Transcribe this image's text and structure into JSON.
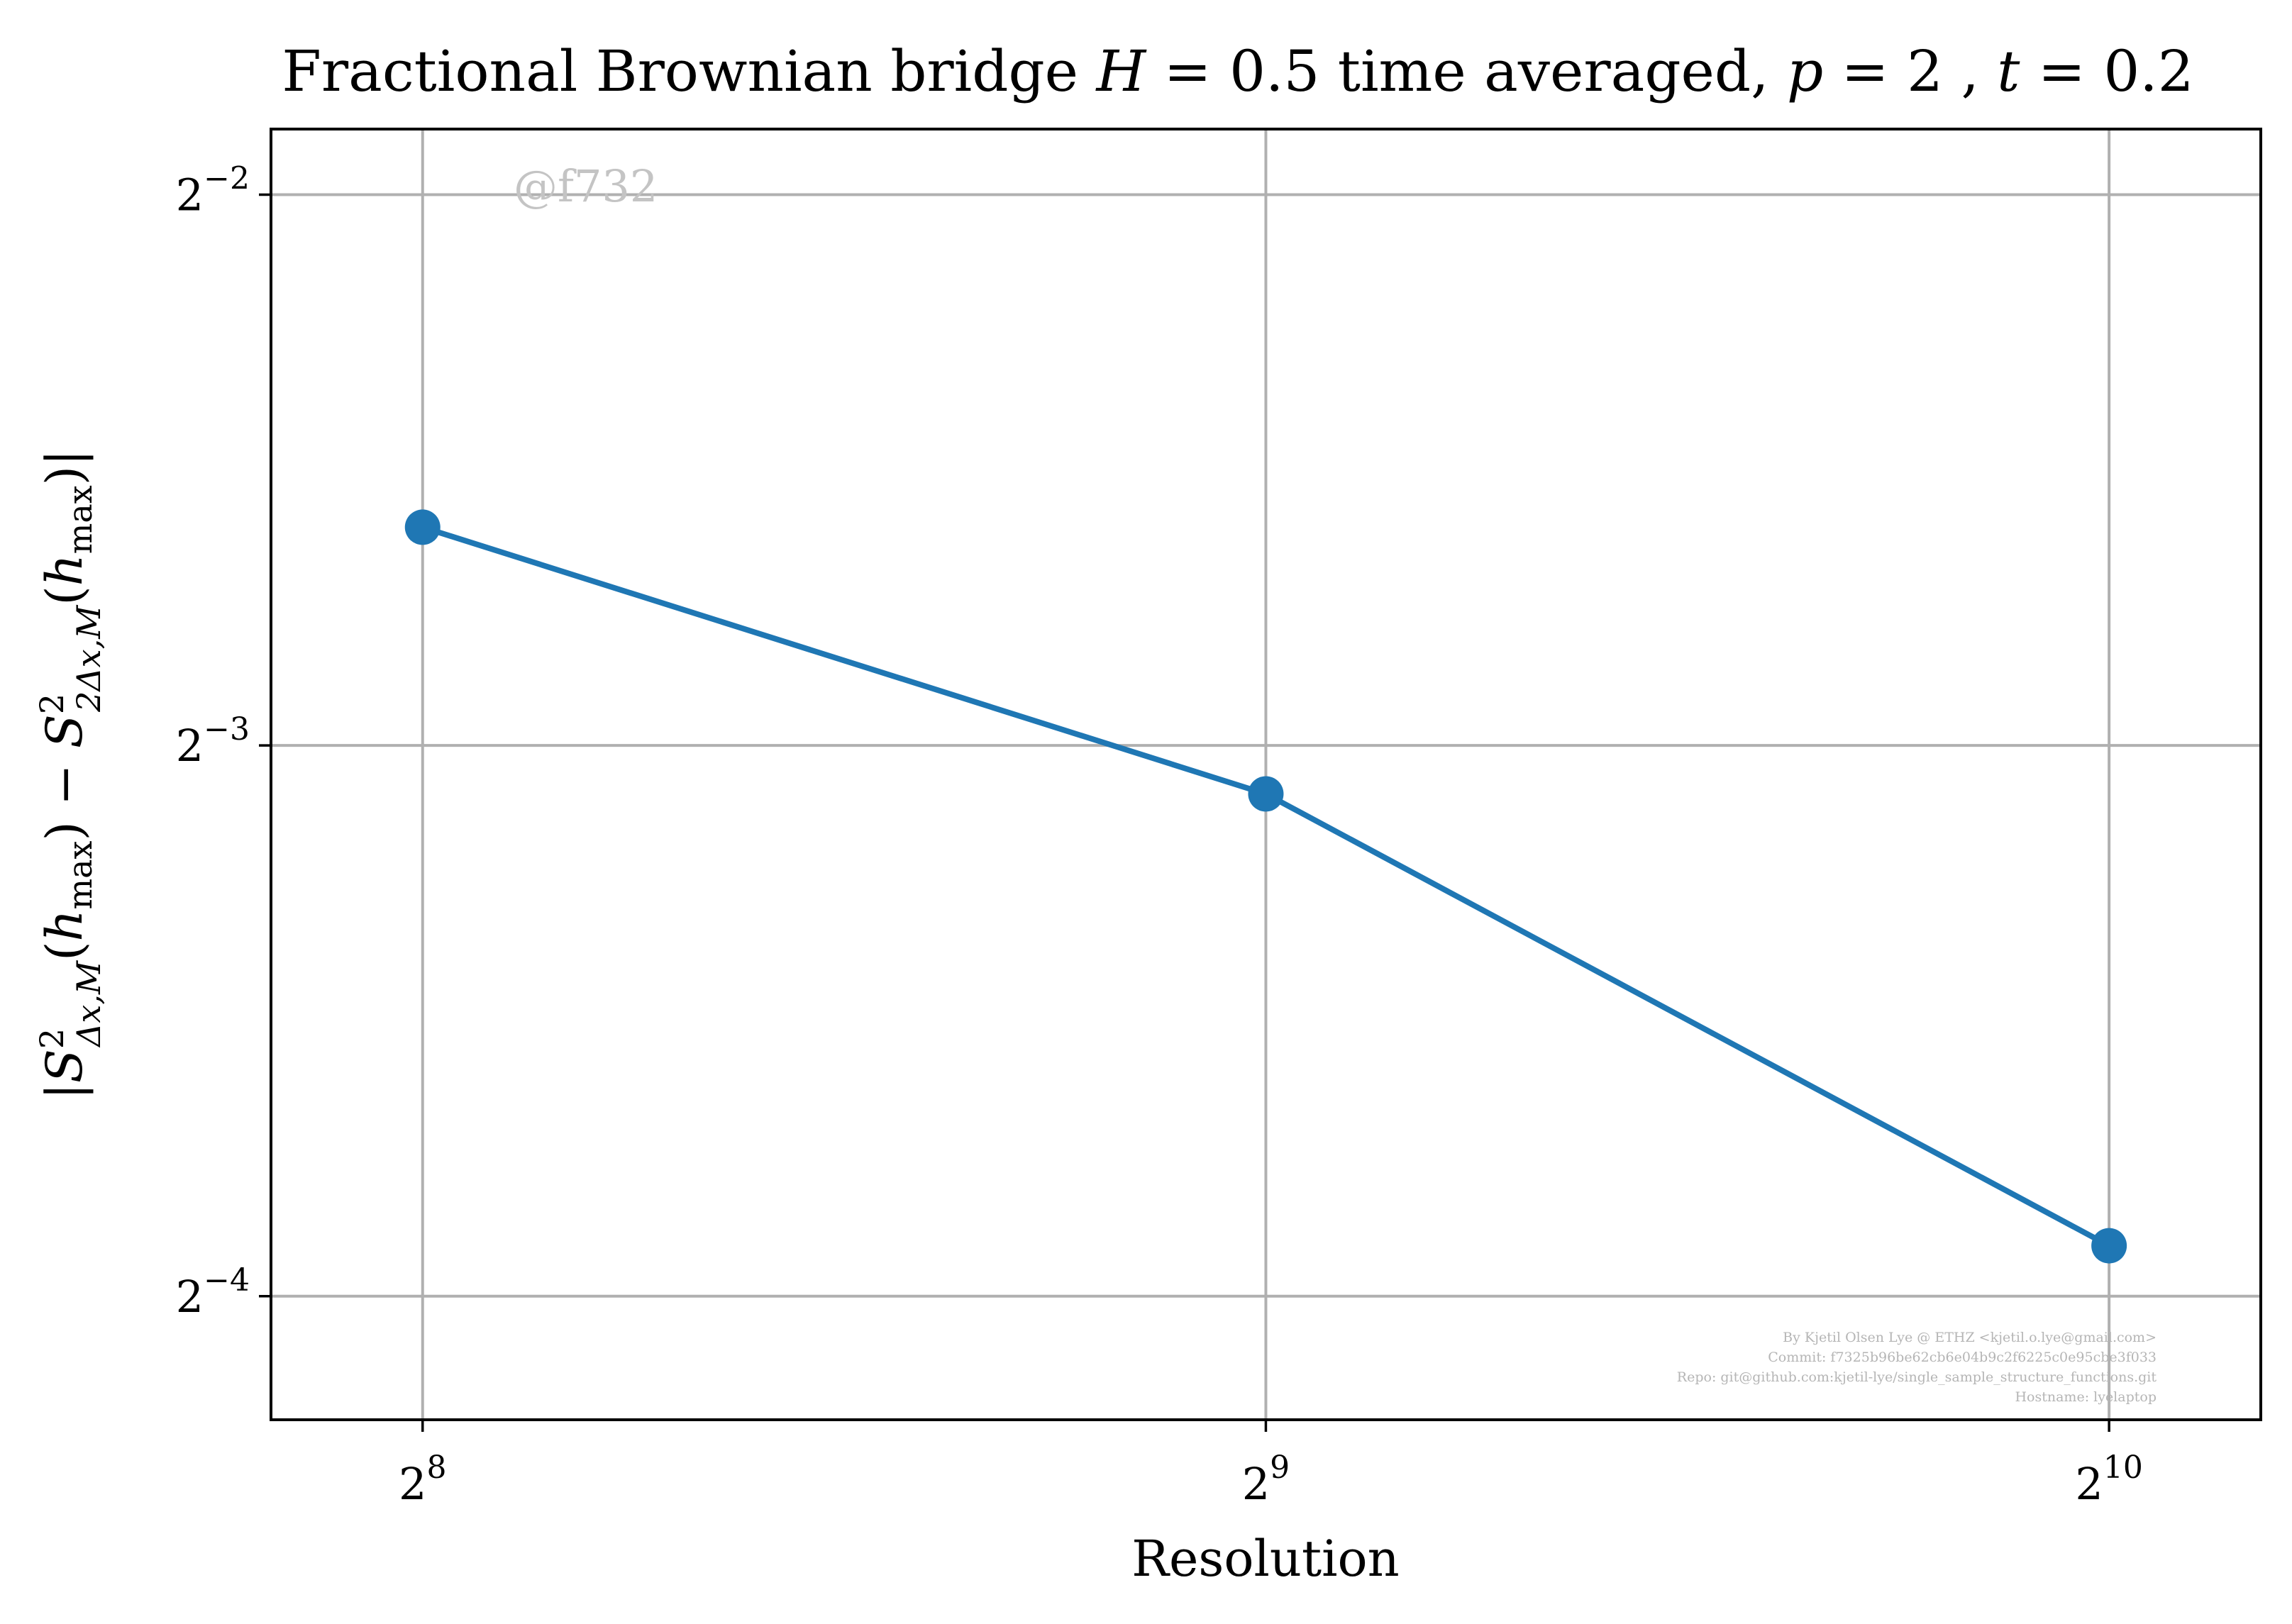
{
  "chart_data": {
    "type": "line",
    "title": {
      "text": "Fractional Brownian bridge",
      "variable": "H",
      "equals": " = ",
      "hurst": "0.5",
      "middle": " time averaged, ",
      "p_symbol": "p",
      "p_value": "2",
      "separator": ", ",
      "t_symbol": "t",
      "t_value": "0.2"
    },
    "xlabel": "Resolution",
    "ylabel": {
      "left": "|",
      "s1": "S",
      "s1_sup": "2",
      "s1_sub": "Δx,M",
      "open1": "(",
      "h1": "h",
      "h1_sub": "max",
      "close1": ")",
      "minus": " − ",
      "s2": "S",
      "s2_sup": "2",
      "s2_sub": "2Δx,M",
      "open2": "(",
      "h2": "h",
      "h2_sub": "max",
      "close2": ")",
      "right": "|"
    },
    "x_scale": "log2",
    "y_scale": "log2",
    "xlim": [
      226,
      1160
    ],
    "ylim": [
      0.0535,
      0.2715
    ],
    "x_ticks": [
      {
        "value": 256,
        "base": "2",
        "exp": "8"
      },
      {
        "value": 512,
        "base": "2",
        "exp": "9"
      },
      {
        "value": 1024,
        "base": "2",
        "exp": "10"
      }
    ],
    "y_ticks": [
      {
        "value": 0.25,
        "base": "2",
        "exp": "−2"
      },
      {
        "value": 0.125,
        "base": "2",
        "exp": "−3"
      },
      {
        "value": 0.0625,
        "base": "2",
        "exp": "−4"
      }
    ],
    "grid": true,
    "series": [
      {
        "color": "#1f77b4",
        "marker": "circle",
        "x": [
          256,
          512,
          1024
        ],
        "y": [
          0.1645,
          0.1176,
          0.0666
        ]
      }
    ]
  },
  "watermark": "@f732",
  "footer": [
    "By Kjetil Olsen Lye @ ETHZ <kjetil.o.lye@gmail.com>",
    "Commit: f7325b96be62cb6e04b9c2f6225c0e95cbe3f033",
    "Repo: git@github.com:kjetil-lye/single_sample_structure_functions.git",
    "Hostname: lyelaptop"
  ]
}
